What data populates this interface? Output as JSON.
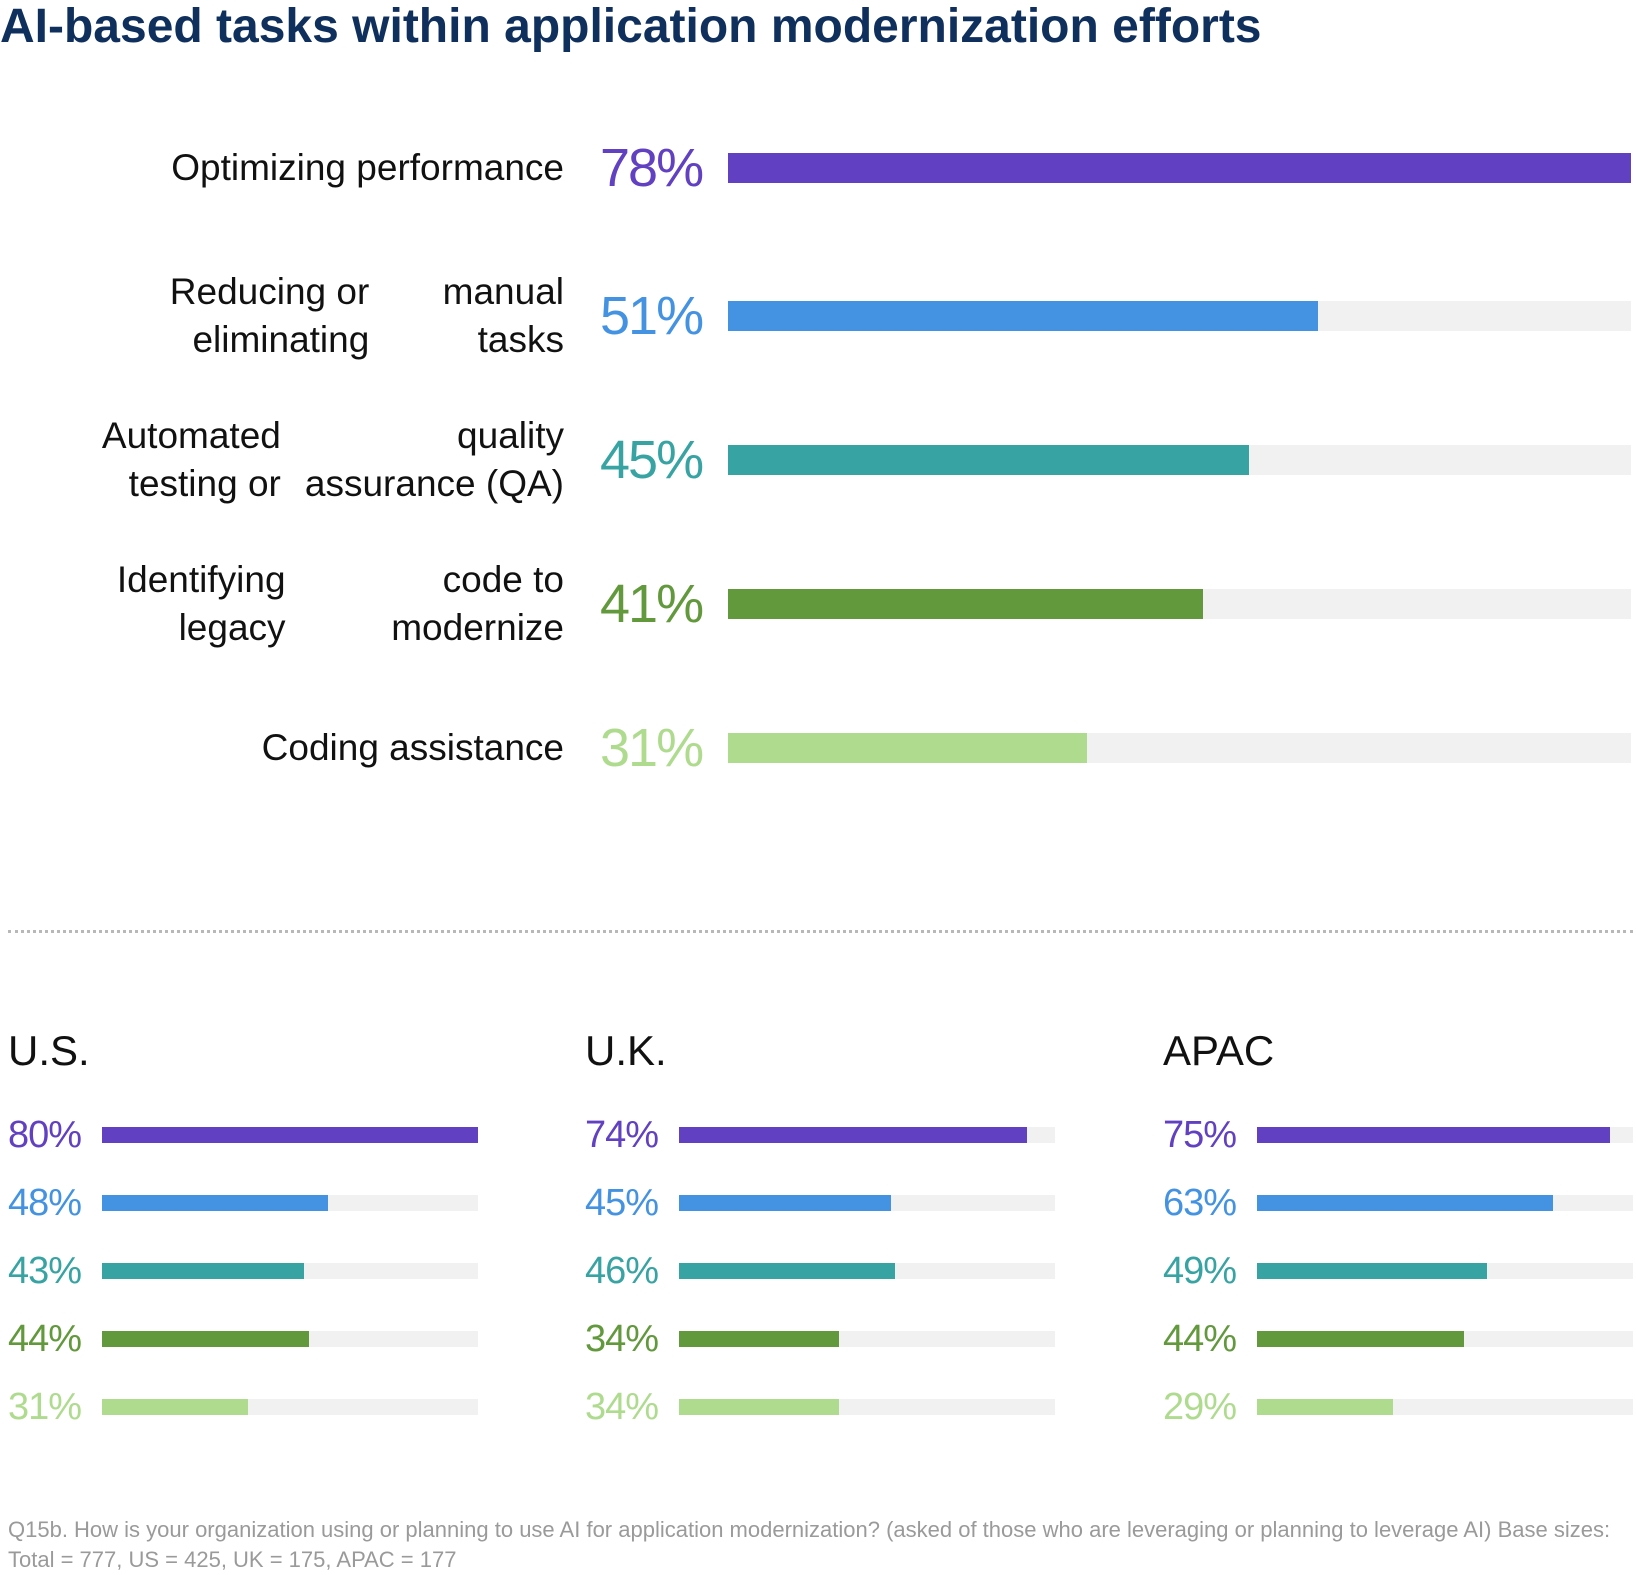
{
  "title": "AI-based tasks within application modernization efforts",
  "colors": [
    "#6141c1",
    "#4493e2",
    "#38a3a3",
    "#63993d",
    "#afdb8f"
  ],
  "chart_data": [
    {
      "type": "bar",
      "orientation": "horizontal",
      "title": "",
      "categories": [
        [
          "Optimizing performance"
        ],
        [
          "Reducing or eliminating",
          "manual tasks"
        ],
        [
          "Automated testing or",
          "quality assurance (QA)"
        ],
        [
          "Identifying legacy",
          "code to modernize"
        ],
        [
          "Coding assistance"
        ]
      ],
      "values": [
        78,
        51,
        45,
        41,
        31
      ],
      "value_labels": [
        "78%",
        "51%",
        "45%",
        "41%",
        "31%"
      ],
      "ylim": [
        0,
        78
      ],
      "grid": false
    },
    {
      "type": "bar",
      "orientation": "horizontal",
      "title": "U.S.",
      "values": [
        80,
        48,
        43,
        44,
        31
      ],
      "value_labels": [
        "80%",
        "48%",
        "43%",
        "44%",
        "31%"
      ],
      "ylim": [
        0,
        80
      ]
    },
    {
      "type": "bar",
      "orientation": "horizontal",
      "title": "U.K.",
      "values": [
        74,
        45,
        46,
        34,
        34
      ],
      "value_labels": [
        "74%",
        "45%",
        "46%",
        "34%",
        "34%"
      ],
      "ylim": [
        0,
        80
      ]
    },
    {
      "type": "bar",
      "orientation": "horizontal",
      "title": "APAC",
      "values": [
        75,
        63,
        49,
        44,
        29
      ],
      "value_labels": [
        "75%",
        "63%",
        "49%",
        "44%",
        "29%"
      ],
      "ylim": [
        0,
        80
      ]
    }
  ],
  "footnote": "Q15b. How is your organization using or planning to use AI for application modernization? (asked of those who are leveraging or planning to leverage AI) Base sizes: Total = 777, US = 425, UK = 175, APAC = 177"
}
